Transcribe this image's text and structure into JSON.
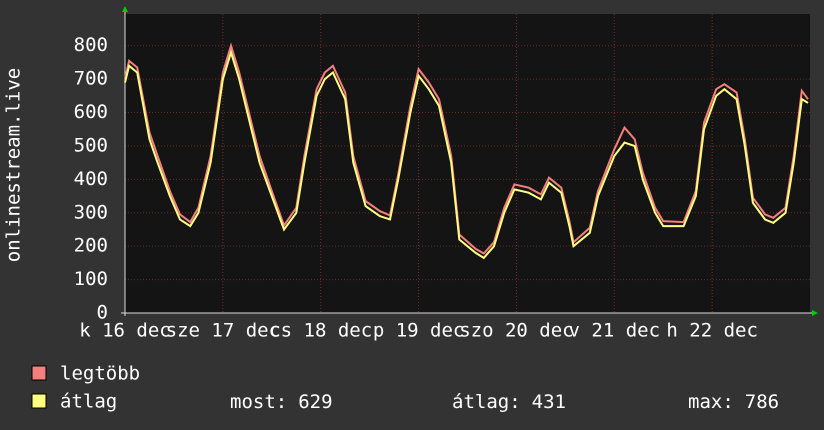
{
  "chart_data": {
    "type": "line",
    "y_label": "onlinestream.live",
    "x": [
      0,
      1,
      3,
      6,
      8,
      11,
      13.5,
      16,
      18,
      21,
      24,
      26,
      28,
      31,
      33,
      36,
      39,
      42,
      44,
      47,
      49,
      51,
      54,
      56,
      59,
      62.5,
      65,
      67,
      70,
      72,
      74.5,
      77,
      80,
      82,
      86,
      88,
      90.5,
      93,
      95.5,
      99,
      102,
      104,
      107,
      109,
      110,
      114,
      116,
      120,
      122.5,
      125,
      127,
      130,
      132,
      137,
      140,
      142,
      145,
      147,
      150,
      152,
      154,
      157,
      159,
      162,
      164,
      166,
      167.5
    ],
    "series": [
      {
        "name": "legtöbb",
        "color": "#f47f7f",
        "values": [
          700,
          755,
          735,
          540,
          470,
          365,
          295,
          272,
          315,
          470,
          720,
          800,
          720,
          570,
          470,
          365,
          262,
          315,
          470,
          670,
          720,
          740,
          660,
          470,
          335,
          305,
          292,
          415,
          620,
          730,
          690,
          640,
          470,
          235,
          192,
          178,
          212,
          315,
          385,
          375,
          355,
          405,
          375,
          275,
          212,
          255,
          365,
          490,
          555,
          520,
          420,
          315,
          275,
          272,
          365,
          570,
          670,
          685,
          660,
          520,
          345,
          295,
          285,
          315,
          470,
          665,
          640
        ]
      },
      {
        "name": "átlag",
        "color": "#ffff80",
        "values": [
          690,
          740,
          720,
          520,
          450,
          350,
          280,
          260,
          300,
          450,
          700,
          780,
          700,
          550,
          450,
          350,
          250,
          300,
          450,
          650,
          700,
          720,
          640,
          450,
          320,
          290,
          280,
          400,
          600,
          710,
          670,
          620,
          450,
          220,
          180,
          165,
          200,
          300,
          370,
          360,
          340,
          390,
          360,
          260,
          200,
          240,
          350,
          470,
          510,
          500,
          400,
          300,
          260,
          260,
          350,
          550,
          650,
          670,
          640,
          500,
          330,
          280,
          270,
          300,
          450,
          640,
          629
        ]
      }
    ],
    "xlim": [
      0,
      168
    ],
    "xticks": [
      {
        "value": 0,
        "label": "k 16 dec"
      },
      {
        "value": 24,
        "label": "sze 17 dec"
      },
      {
        "value": 48,
        "label": "cs 18 dec"
      },
      {
        "value": 72,
        "label": "p 19 dec"
      },
      {
        "value": 96,
        "label": "szo 20 dec"
      },
      {
        "value": 120,
        "label": "v 21 dec"
      },
      {
        "value": 144,
        "label": "h 22 dec"
      }
    ],
    "ylim": [
      0,
      895
    ],
    "yticks": [
      0,
      100,
      200,
      300,
      400,
      500,
      600,
      700,
      800
    ],
    "grid": true,
    "stats": [
      {
        "label": "most:",
        "value": 629
      },
      {
        "label": "átlag:",
        "value": 431
      },
      {
        "label": "max:",
        "value": 786
      }
    ]
  }
}
